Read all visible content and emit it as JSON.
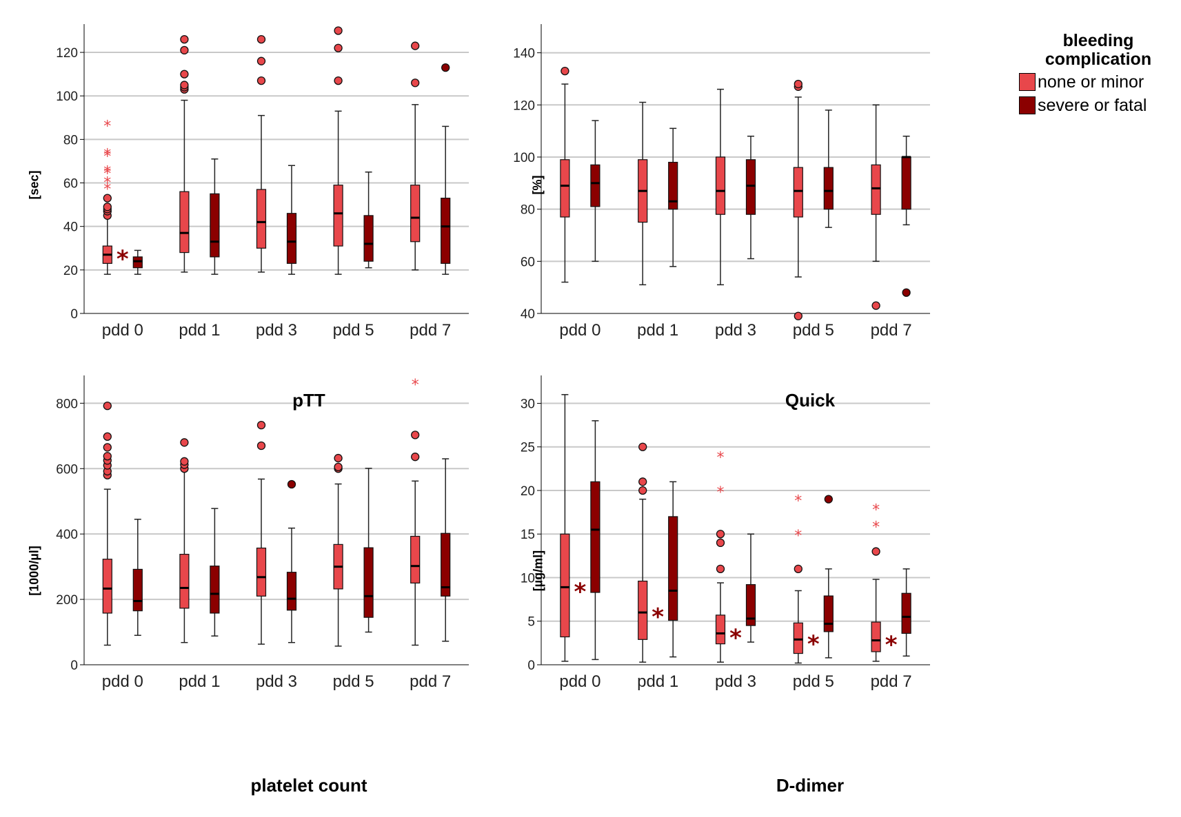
{
  "legend": {
    "title_line1": "bleeding",
    "title_line2": "complication",
    "items": [
      {
        "label": "none or minor",
        "color": "#e8474b"
      },
      {
        "label": "severe or fatal",
        "color": "#8b0000"
      }
    ]
  },
  "colors": {
    "group1": "#e8474b",
    "group2": "#8b0000",
    "grid": "#c8c8c8",
    "axis": "#000000",
    "sig": "#8b0000"
  },
  "chart_data": [
    {
      "type": "box",
      "title": "pTT",
      "ylabel": "[sec]",
      "categories": [
        "pdd 0",
        "pdd 1",
        "pdd 3",
        "pdd 5",
        "pdd 7"
      ],
      "ylim": [
        0,
        133
      ],
      "yticks": [
        0,
        20,
        40,
        60,
        80,
        100,
        120
      ],
      "significance": [
        "*",
        "",
        "",
        "",
        ""
      ],
      "series": [
        {
          "name": "none or minor",
          "boxes": [
            {
              "min": 18,
              "q1": 23,
              "median": 27,
              "q3": 31,
              "max": 44,
              "outliers": [
                45,
                47,
                48,
                49,
                53
              ],
              "extremes": [
                58,
                61,
                65,
                66,
                73,
                74,
                87
              ]
            },
            {
              "min": 19,
              "q1": 28,
              "median": 37,
              "q3": 56,
              "max": 98,
              "outliers": [
                103,
                104,
                105,
                110,
                121,
                126
              ],
              "extremes": []
            },
            {
              "min": 19,
              "q1": 30,
              "median": 42,
              "q3": 57,
              "max": 91,
              "outliers": [
                107,
                116,
                126
              ],
              "extremes": []
            },
            {
              "min": 18,
              "q1": 31,
              "median": 46,
              "q3": 59,
              "max": 93,
              "outliers": [
                107,
                122,
                130
              ],
              "extremes": []
            },
            {
              "min": 20,
              "q1": 33,
              "median": 44,
              "q3": 59,
              "max": 96,
              "outliers": [
                106,
                123
              ],
              "extremes": []
            }
          ]
        },
        {
          "name": "severe or fatal",
          "boxes": [
            {
              "min": 18,
              "q1": 21,
              "median": 24,
              "q3": 26,
              "max": 29,
              "outliers": [],
              "extremes": []
            },
            {
              "min": 18,
              "q1": 26,
              "median": 33,
              "q3": 55,
              "max": 71,
              "outliers": [],
              "extremes": []
            },
            {
              "min": 18,
              "q1": 23,
              "median": 33,
              "q3": 46,
              "max": 68,
              "outliers": [],
              "extremes": []
            },
            {
              "min": 21,
              "q1": 24,
              "median": 32,
              "q3": 45,
              "max": 65,
              "outliers": [],
              "extremes": []
            },
            {
              "min": 18,
              "q1": 23,
              "median": 40,
              "q3": 53,
              "max": 86,
              "outliers": [
                113
              ],
              "extremes": []
            }
          ]
        }
      ]
    },
    {
      "type": "box",
      "title": "Quick",
      "ylabel": "[%]",
      "categories": [
        "pdd 0",
        "pdd 1",
        "pdd 3",
        "pdd 5",
        "pdd 7"
      ],
      "ylim": [
        40,
        151
      ],
      "yticks": [
        40,
        60,
        80,
        100,
        120,
        140
      ],
      "significance": [
        "",
        "",
        "",
        "",
        ""
      ],
      "series": [
        {
          "name": "none or minor",
          "boxes": [
            {
              "min": 52,
              "q1": 77,
              "median": 89,
              "q3": 99,
              "max": 128,
              "outliers": [
                133
              ],
              "extremes": []
            },
            {
              "min": 51,
              "q1": 75,
              "median": 87,
              "q3": 99,
              "max": 121,
              "outliers": [],
              "extremes": []
            },
            {
              "min": 51,
              "q1": 78,
              "median": 87,
              "q3": 100,
              "max": 126,
              "outliers": [],
              "extremes": []
            },
            {
              "min": 54,
              "q1": 77,
              "median": 87,
              "q3": 96,
              "max": 123,
              "outliers": [
                127,
                128,
                39
              ],
              "extremes": []
            },
            {
              "min": 60,
              "q1": 78,
              "median": 88,
              "q3": 97,
              "max": 120,
              "outliers": [
                43
              ],
              "extremes": []
            }
          ]
        },
        {
          "name": "severe or fatal",
          "boxes": [
            {
              "min": 60,
              "q1": 81,
              "median": 90,
              "q3": 97,
              "max": 114,
              "outliers": [],
              "extremes": []
            },
            {
              "min": 58,
              "q1": 80,
              "median": 83,
              "q3": 98,
              "max": 111,
              "outliers": [],
              "extremes": []
            },
            {
              "min": 61,
              "q1": 78,
              "median": 89,
              "q3": 99,
              "max": 108,
              "outliers": [],
              "extremes": []
            },
            {
              "min": 73,
              "q1": 80,
              "median": 87,
              "q3": 96,
              "max": 118,
              "outliers": [],
              "extremes": []
            },
            {
              "min": 74,
              "q1": 80,
              "median": 100,
              "q3": 100,
              "max": 108,
              "outliers": [
                48
              ],
              "extremes": []
            }
          ]
        }
      ]
    },
    {
      "type": "box",
      "title": "platelet count",
      "ylabel": "[1000/µl]",
      "categories": [
        "pdd 0",
        "pdd 1",
        "pdd 3",
        "pdd 5",
        "pdd 7"
      ],
      "ylim": [
        0,
        885
      ],
      "yticks": [
        0,
        200,
        400,
        600,
        800
      ],
      "significance": [
        "",
        "",
        "",
        "",
        ""
      ],
      "series": [
        {
          "name": "none or minor",
          "boxes": [
            {
              "min": 60,
              "q1": 158,
              "median": 233,
              "q3": 323,
              "max": 537,
              "outliers": [
                580,
                592,
                610,
                625,
                638,
                665,
                698,
                792
              ],
              "extremes": []
            },
            {
              "min": 68,
              "q1": 173,
              "median": 235,
              "q3": 338,
              "max": 593,
              "outliers": [
                600,
                612,
                622,
                680
              ],
              "extremes": []
            },
            {
              "min": 63,
              "q1": 210,
              "median": 268,
              "q3": 357,
              "max": 568,
              "outliers": [
                670,
                733
              ],
              "extremes": []
            },
            {
              "min": 57,
              "q1": 232,
              "median": 300,
              "q3": 368,
              "max": 553,
              "outliers": [
                600,
                605,
                632
              ],
              "extremes": []
            },
            {
              "min": 60,
              "q1": 250,
              "median": 302,
              "q3": 393,
              "max": 562,
              "outliers": [
                636,
                703
              ],
              "extremes": [
                862
              ]
            }
          ]
        },
        {
          "name": "severe or fatal",
          "boxes": [
            {
              "min": 90,
              "q1": 165,
              "median": 195,
              "q3": 292,
              "max": 445,
              "outliers": [],
              "extremes": []
            },
            {
              "min": 88,
              "q1": 158,
              "median": 217,
              "q3": 302,
              "max": 478,
              "outliers": [],
              "extremes": []
            },
            {
              "min": 68,
              "q1": 167,
              "median": 202,
              "q3": 283,
              "max": 418,
              "outliers": [
                552
              ],
              "extremes": []
            },
            {
              "min": 100,
              "q1": 145,
              "median": 210,
              "q3": 358,
              "max": 601,
              "outliers": [],
              "extremes": []
            },
            {
              "min": 72,
              "q1": 210,
              "median": 237,
              "q3": 402,
              "max": 630,
              "outliers": [],
              "extremes": []
            }
          ]
        }
      ]
    },
    {
      "type": "box",
      "title": "D-dimer",
      "ylabel": "[µg/ml]",
      "categories": [
        "pdd 0",
        "pdd 1",
        "pdd 3",
        "pdd 5",
        "pdd 7"
      ],
      "ylim": [
        0,
        33.2
      ],
      "yticks": [
        0,
        5,
        10,
        15,
        20,
        25,
        30
      ],
      "significance": [
        "*",
        "*",
        "*",
        "*",
        "*"
      ],
      "series": [
        {
          "name": "none or minor",
          "boxes": [
            {
              "min": 0.4,
              "q1": 3.2,
              "median": 8.9,
              "q3": 15,
              "max": 31,
              "outliers": [],
              "extremes": []
            },
            {
              "min": 0.3,
              "q1": 2.9,
              "median": 6,
              "q3": 9.6,
              "max": 19,
              "outliers": [
                20,
                21,
                25
              ],
              "extremes": []
            },
            {
              "min": 0.3,
              "q1": 2.4,
              "median": 3.6,
              "q3": 5.7,
              "max": 9.4,
              "outliers": [
                11,
                14,
                15
              ],
              "extremes": [
                20,
                24
              ]
            },
            {
              "min": 0.2,
              "q1": 1.3,
              "median": 2.9,
              "q3": 4.8,
              "max": 8.5,
              "outliers": [
                11
              ],
              "extremes": [
                15,
                19
              ]
            },
            {
              "min": 0.4,
              "q1": 1.5,
              "median": 2.8,
              "q3": 4.9,
              "max": 9.8,
              "outliers": [
                13
              ],
              "extremes": [
                16,
                18
              ]
            }
          ]
        },
        {
          "name": "severe or fatal",
          "boxes": [
            {
              "min": 0.6,
              "q1": 8.3,
              "median": 15.5,
              "q3": 21,
              "max": 28,
              "outliers": [],
              "extremes": []
            },
            {
              "min": 0.9,
              "q1": 5.1,
              "median": 8.5,
              "q3": 17,
              "max": 21,
              "outliers": [],
              "extremes": []
            },
            {
              "min": 2.6,
              "q1": 4.5,
              "median": 5.3,
              "q3": 9.2,
              "max": 15,
              "outliers": [],
              "extremes": []
            },
            {
              "min": 0.8,
              "q1": 3.8,
              "median": 4.7,
              "q3": 7.9,
              "max": 11,
              "outliers": [
                19
              ],
              "extremes": []
            },
            {
              "min": 1,
              "q1": 3.6,
              "median": 5.5,
              "q3": 8.2,
              "max": 11,
              "outliers": [],
              "extremes": []
            }
          ]
        }
      ]
    }
  ]
}
